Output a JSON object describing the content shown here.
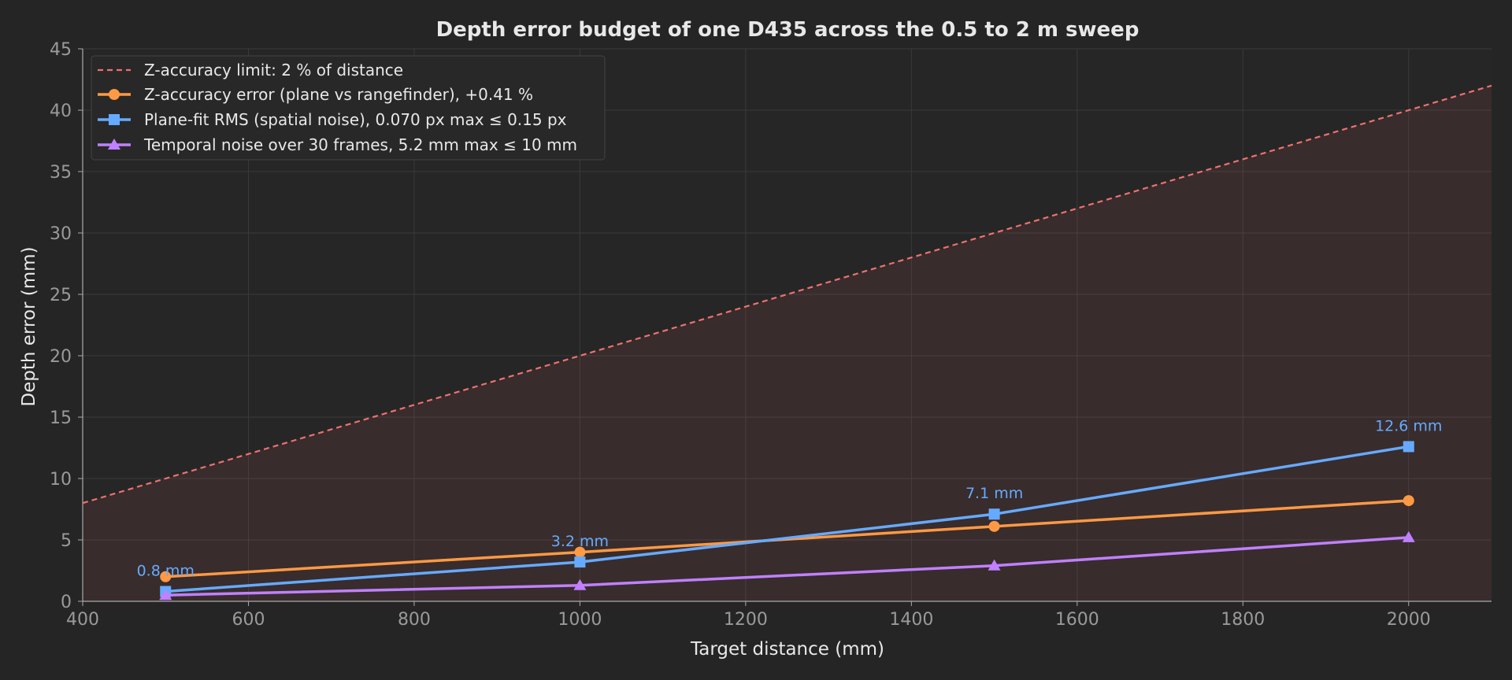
{
  "chart_data": {
    "type": "line",
    "title": "Depth error budget of one D435 across the 0.5 to 2 m sweep",
    "xlabel": "Target distance (mm)",
    "ylabel": "Depth error (mm)",
    "xlim": [
      400,
      2100
    ],
    "ylim": [
      0,
      45
    ],
    "x_ticks": [
      400,
      600,
      800,
      1000,
      1200,
      1400,
      1600,
      1800,
      2000
    ],
    "y_ticks": [
      0,
      5,
      10,
      15,
      20,
      25,
      30,
      35,
      40,
      45
    ],
    "grid": true,
    "legend_position": "top-left",
    "limit_line": {
      "name": "Z-accuracy limit: 2 % of distance",
      "x": [
        400,
        2100
      ],
      "y": [
        8,
        42
      ],
      "color": "#f07070",
      "style": "dashed"
    },
    "series": [
      {
        "name": "Z-accuracy error (plane vs rangefinder), +0.41 %",
        "x": [
          500,
          1000,
          1500,
          2000
        ],
        "y": [
          2.0,
          4.0,
          6.1,
          8.2
        ],
        "color": "#ff9944",
        "marker": "circle"
      },
      {
        "name": "Plane-fit RMS (spatial noise), 0.070 px max ≤ 0.15 px",
        "x": [
          500,
          1000,
          1500,
          2000
        ],
        "y": [
          0.8,
          3.2,
          7.1,
          12.6
        ],
        "color": "#66aaff",
        "marker": "square",
        "labels": [
          "0.8 mm",
          "3.2 mm",
          "7.1 mm",
          "12.6 mm"
        ]
      },
      {
        "name": "Temporal noise over 30 frames, 5.2 mm max ≤ 10 mm",
        "x": [
          500,
          1000,
          1500,
          2000
        ],
        "y": [
          0.5,
          1.3,
          2.9,
          5.2
        ],
        "color": "#c080ff",
        "marker": "triangle"
      }
    ]
  }
}
